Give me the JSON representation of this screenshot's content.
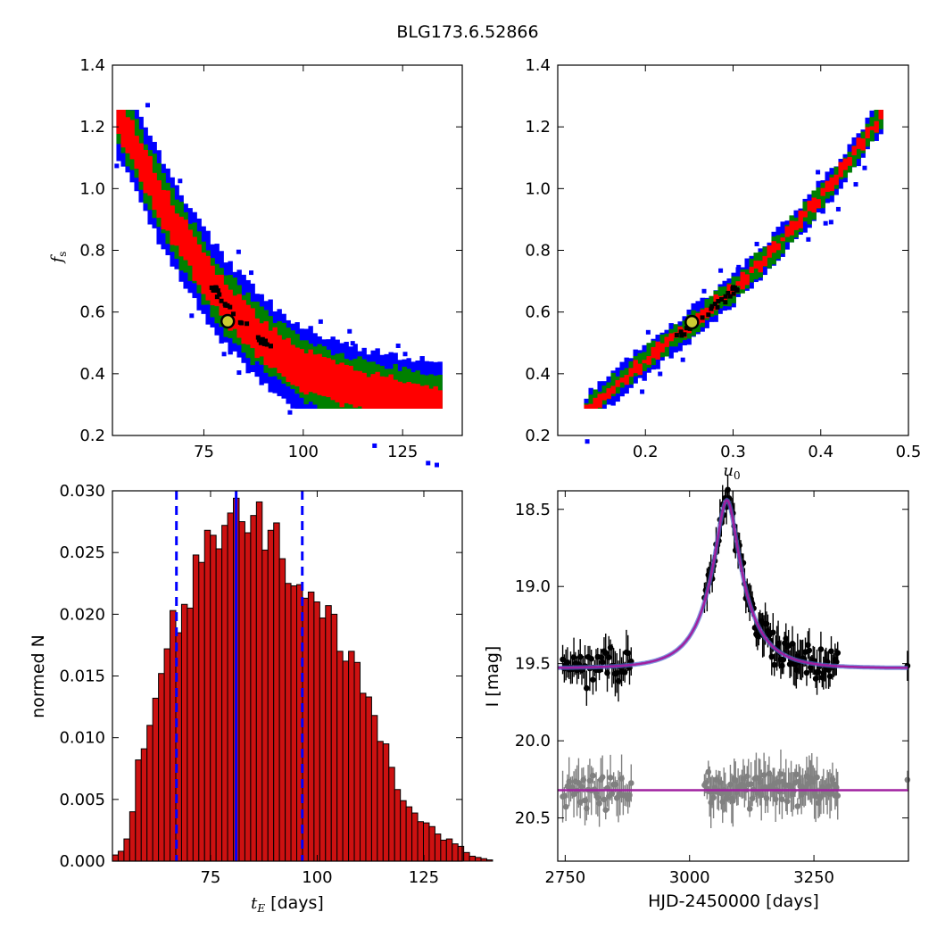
{
  "title": "BLG173.6.52866",
  "colors": {
    "sigma3": "#0000ff",
    "sigma2": "#008000",
    "sigma1": "#ff0000",
    "best": "#000000",
    "marker_face": "#cccc33",
    "hist_fill": "#cc1111",
    "vline": "#0000ff",
    "model": "#a020a0",
    "data_black": "#000000",
    "data_gray": "#808080"
  },
  "chart_data": [
    {
      "id": "tE_vs_fs",
      "type": "heatmap",
      "xlabel": "",
      "ylabel_sym": "f",
      "ylabel_sub": "s",
      "xlim": [
        52,
        140
      ],
      "ylim": [
        0.2,
        1.4
      ],
      "xticks": [
        "75",
        "100",
        "125"
      ],
      "xtick_vals": [
        75,
        100,
        125
      ],
      "yticks": [
        "0.2",
        "0.4",
        "0.6",
        "0.8",
        "1.0",
        "1.2",
        "1.4"
      ],
      "ytick_vals": [
        0.2,
        0.4,
        0.6,
        0.8,
        1.0,
        1.2,
        1.4
      ],
      "regions": "3-sigma (blue), 2-sigma (green), 1-sigma (red), best-fit (black)",
      "curve_x": [
        53,
        56,
        60,
        64,
        68,
        72,
        76,
        80,
        85,
        90,
        95,
        100,
        105,
        110,
        115,
        120,
        125,
        130,
        134
      ],
      "curve_y": [
        1.24,
        1.16,
        1.05,
        0.95,
        0.86,
        0.78,
        0.7,
        0.63,
        0.56,
        0.5,
        0.45,
        0.41,
        0.38,
        0.355,
        0.34,
        0.325,
        0.315,
        0.305,
        0.295
      ],
      "best_fit": {
        "x": 81,
        "y": 0.57
      }
    },
    {
      "id": "u0_vs_fs",
      "type": "heatmap",
      "xlabel_sym": "u",
      "xlabel_sub": "0",
      "ylabel": "",
      "xlim": [
        0.1,
        0.5
      ],
      "ylim": [
        0.2,
        1.4
      ],
      "xticks": [
        "0.2",
        "0.3",
        "0.4",
        "0.5"
      ],
      "xtick_vals": [
        0.2,
        0.3,
        0.4,
        0.5
      ],
      "yticks": [
        "0.2",
        "0.4",
        "0.6",
        "0.8",
        "1.0",
        "1.2",
        "1.4"
      ],
      "ytick_vals": [
        0.2,
        0.4,
        0.6,
        0.8,
        1.0,
        1.2,
        1.4
      ],
      "curve_x": [
        0.13,
        0.2,
        0.25,
        0.3,
        0.35,
        0.4,
        0.45,
        0.47
      ],
      "curve_y": [
        0.28,
        0.45,
        0.56,
        0.68,
        0.82,
        0.98,
        1.17,
        1.25
      ],
      "best_fit": {
        "x": 0.253,
        "y": 0.567
      }
    },
    {
      "id": "tE_histogram",
      "type": "bar",
      "xlabel_sym": "t",
      "xlabel_sub": "E",
      "xlabel_unit": "[days]",
      "ylabel": "normed N",
      "xlim": [
        52,
        134
      ],
      "ylim": [
        0,
        0.03
      ],
      "xticks": [
        "75",
        "100",
        "125"
      ],
      "xtick_vals": [
        75,
        100,
        125
      ],
      "yticks": [
        "0.000",
        "0.005",
        "0.010",
        "0.015",
        "0.020",
        "0.025",
        "0.030"
      ],
      "ytick_vals": [
        0,
        0.005,
        0.01,
        0.015,
        0.02,
        0.025,
        0.03
      ],
      "bin_start": 52,
      "bin_width": 1.35,
      "values": [
        0.0005,
        0.0008,
        0.0018,
        0.004,
        0.0082,
        0.0091,
        0.011,
        0.0132,
        0.0152,
        0.0172,
        0.0203,
        0.0185,
        0.0208,
        0.0205,
        0.0248,
        0.0242,
        0.0268,
        0.0264,
        0.0253,
        0.0272,
        0.0282,
        0.0294,
        0.0275,
        0.0266,
        0.028,
        0.0291,
        0.0252,
        0.0268,
        0.0274,
        0.0245,
        0.0225,
        0.0223,
        0.0224,
        0.0213,
        0.0218,
        0.021,
        0.0197,
        0.0207,
        0.02,
        0.017,
        0.0162,
        0.017,
        0.0161,
        0.0136,
        0.0133,
        0.0118,
        0.0097,
        0.0095,
        0.0076,
        0.0058,
        0.0049,
        0.0044,
        0.0039,
        0.0032,
        0.0031,
        0.0028,
        0.0022,
        0.0017,
        0.0018,
        0.0014,
        0.0012,
        0.0007,
        0.0004,
        0.0003,
        0.0002,
        0.0001
      ],
      "median": 81,
      "lower": 67,
      "upper": 96.5
    },
    {
      "id": "lightcurve",
      "type": "scatter",
      "xlabel": "HJD-2450000 [days]",
      "ylabel": "I [mag]",
      "xlim": [
        2735,
        3440
      ],
      "ylim": [
        20.78,
        18.38
      ],
      "xticks": [
        "2750",
        "3000",
        "3250"
      ],
      "xtick_vals": [
        2750,
        3000,
        3250
      ],
      "yticks": [
        "18.5",
        "19.0",
        "19.5",
        "20.0",
        "20.5"
      ],
      "ytick_vals": [
        18.5,
        19.0,
        19.5,
        20.0,
        20.5
      ],
      "model": {
        "t0": 3075,
        "tE": 81,
        "u0": 0.253,
        "fs": 0.567,
        "baseline": 19.53
      },
      "residual_baseline": 20.32
    }
  ]
}
